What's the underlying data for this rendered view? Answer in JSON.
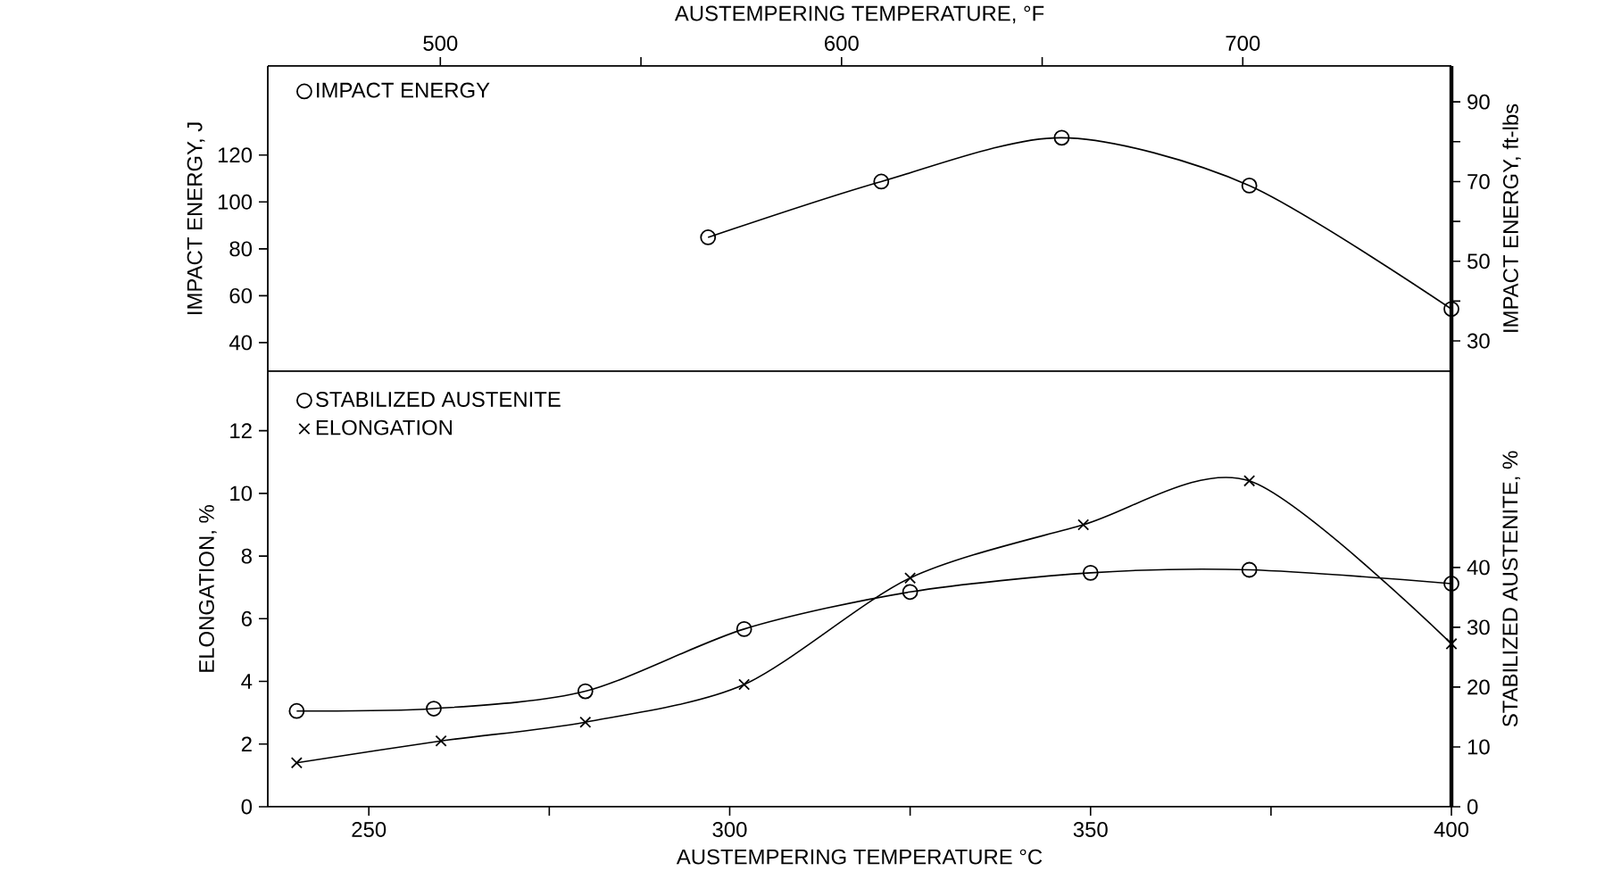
{
  "chart_data": [
    {
      "type": "line",
      "xlim": [
        236,
        400
      ],
      "x2lim": [
        457,
        752
      ],
      "x2ticks": [
        500,
        {
          "value": 550,
          "label": null
        },
        600,
        {
          "value": 650,
          "label": null
        },
        700
      ],
      "x2label": "AUSTEMPERING TEMPERATURE, °F",
      "ylim": [
        27.8,
        158
      ],
      "yticks": [
        40,
        60,
        80,
        100,
        120
      ],
      "ylabel": "IMPACT ENERGY, J",
      "y2lim": [
        22.4,
        99
      ],
      "y2ticks": [
        30,
        {
          "value": 40,
          "label": null
        },
        50,
        {
          "value": 60,
          "label": null
        },
        70,
        {
          "value": 80,
          "label": null
        },
        90
      ],
      "y2label": "IMPACT ENERGY, ft-lbs",
      "tick_labels": "y",
      "legend": "top left",
      "series": [
        {
          "name": "IMPACT ENERGY",
          "color": "#000000",
          "x": [
            297,
            321,
            346,
            372,
            400
          ],
          "values": [
            56,
            70,
            81,
            69,
            38
          ],
          "axis": "y2",
          "marker": "circle"
        }
      ]
    },
    {
      "type": "line",
      "xlim": [
        236,
        400
      ],
      "xticks": [
        250,
        {
          "value": 275,
          "label": null
        },
        300,
        {
          "value": 325,
          "label": null
        },
        350,
        {
          "value": 375,
          "label": null
        },
        400
      ],
      "xlabel": "AUSTEMPERING TEMPERATURE °C",
      "ylim": [
        0,
        13.9
      ],
      "yticks": [
        0,
        2,
        4,
        6,
        8,
        10,
        12
      ],
      "ylabel": "ELONGATION, %",
      "y2lim": [
        0,
        72.8
      ],
      "y2ticks": [
        0,
        10,
        20,
        30,
        40
      ],
      "y2label": "STABILIZED AUSTENITE, %",
      "legend": "top left",
      "series": [
        {
          "name": "STABILIZED AUSTENITE",
          "color": "#000000",
          "x": [
            240,
            259,
            280,
            302,
            325,
            350,
            372,
            400
          ],
          "values": [
            16,
            16.4,
            19.3,
            29.7,
            35.9,
            39.1,
            39.6,
            37.3
          ],
          "axis": "y2",
          "marker": "circle"
        },
        {
          "name": "ELONGATION",
          "color": "#000000",
          "x": [
            240,
            260,
            280,
            302,
            325,
            349,
            372,
            400
          ],
          "values": [
            1.4,
            2.1,
            2.7,
            3.9,
            7.3,
            9.0,
            10.4,
            5.2
          ],
          "marker": "cross"
        }
      ]
    }
  ]
}
